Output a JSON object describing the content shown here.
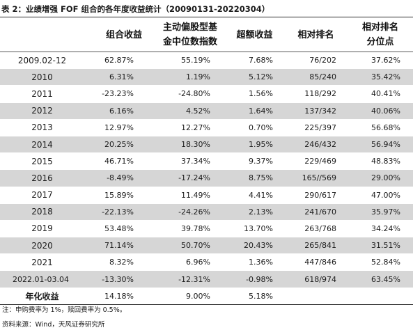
{
  "title": "表 2：业绩增强 FOF 组合的各年度收益统计（20090131-20220304）",
  "columns": [
    "",
    [
      "组合收益"
    ],
    [
      "主动偏股型基",
      "金中位数指数"
    ],
    [
      "超额收益"
    ],
    [
      "相对排名"
    ],
    [
      "相对排名",
      "分位点"
    ]
  ],
  "rows": [
    {
      "year": "2009.02-12",
      "ret": "62.87%",
      "median": "55.19%",
      "excess": "7.68%",
      "rank": "76/202",
      "pct": "37.62%"
    },
    {
      "year": "2010",
      "ret": "6.31%",
      "median": "1.19%",
      "excess": "5.12%",
      "rank": "85/240",
      "pct": "35.42%"
    },
    {
      "year": "2011",
      "ret": "-23.23%",
      "median": "-24.80%",
      "excess": "1.56%",
      "rank": "118/292",
      "pct": "40.41%"
    },
    {
      "year": "2012",
      "ret": "6.16%",
      "median": "4.52%",
      "excess": "1.64%",
      "rank": "137/342",
      "pct": "40.06%"
    },
    {
      "year": "2013",
      "ret": "12.97%",
      "median": "12.27%",
      "excess": "0.70%",
      "rank": "225/397",
      "pct": "56.68%"
    },
    {
      "year": "2014",
      "ret": "20.25%",
      "median": "18.30%",
      "excess": "1.95%",
      "rank": "246/432",
      "pct": "56.94%"
    },
    {
      "year": "2015",
      "ret": "46.71%",
      "median": "37.34%",
      "excess": "9.37%",
      "rank": "229/469",
      "pct": "48.83%"
    },
    {
      "year": "2016",
      "ret": "-8.49%",
      "median": "-17.24%",
      "excess": "8.75%",
      "rank": "165//569",
      "pct": "29.00%"
    },
    {
      "year": "2017",
      "ret": "15.89%",
      "median": "11.49%",
      "excess": "4.41%",
      "rank": "290/617",
      "pct": "47.00%"
    },
    {
      "year": "2018",
      "ret": "-22.13%",
      "median": "-24.26%",
      "excess": "2.13%",
      "rank": "241/670",
      "pct": "35.97%"
    },
    {
      "year": "2019",
      "ret": "53.48%",
      "median": "39.78%",
      "excess": "13.70%",
      "rank": "263/768",
      "pct": "34.24%"
    },
    {
      "year": "2020",
      "ret": "71.14%",
      "median": "50.70%",
      "excess": "20.43%",
      "rank": "265/841",
      "pct": "31.51%"
    },
    {
      "year": "2021",
      "ret": "8.32%",
      "median": "6.96%",
      "excess": "1.36%",
      "rank": "447/846",
      "pct": "52.84%"
    },
    {
      "year": "2022.01-03.04",
      "ret": "-13.30%",
      "median": "-12.31%",
      "excess": "-0.98%",
      "rank": "618/974",
      "pct": "63.45%"
    },
    {
      "year": "年化收益",
      "ret": "14.18%",
      "median": "9.00%",
      "excess": "5.18%",
      "rank": "",
      "pct": ""
    }
  ],
  "notes": [
    "注：申购费率为 1%，赎回费率为 0.5%。",
    "资料来源：Wind，天风证券研究所"
  ],
  "colors": {
    "row_shade": "#d6d6d6",
    "rule": "#2a2a2a"
  }
}
